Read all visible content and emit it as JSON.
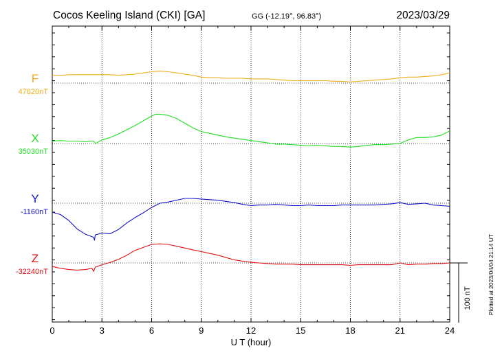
{
  "chart_data": {
    "type": "line",
    "title": "Cocos Keeling Island (CKI)  [GA]",
    "coords": "GG (-12.19°,  96.83°)",
    "date": "2023/03/29",
    "xlabel": "U T (hour)",
    "xlim": [
      0,
      24
    ],
    "xticks": [
      0,
      3,
      6,
      9,
      12,
      15,
      18,
      21,
      24
    ],
    "scale_label": "100 nT",
    "scale_nT": 100,
    "plotted_note": "Plotted at 2023/04/04 21:14 UT",
    "series": [
      {
        "name": "F",
        "baseline_label": "47620nT",
        "baseline_nT": 47620,
        "color": "#f0ac1a",
        "x": [
          0,
          0.5,
          1,
          1.5,
          2,
          2.5,
          3,
          3.5,
          4,
          4.5,
          5,
          5.5,
          6,
          6.5,
          7,
          7.5,
          8,
          8.5,
          9,
          9.5,
          10,
          10.5,
          11,
          11.5,
          12,
          12.5,
          13,
          13.5,
          14,
          14.5,
          15,
          15.5,
          16,
          16.5,
          17,
          17.5,
          18,
          18.5,
          19,
          19.5,
          20,
          20.5,
          21,
          21.5,
          22,
          22.5,
          23,
          23.5,
          24
        ],
        "values": [
          47633,
          47633,
          47634,
          47634,
          47634,
          47634,
          47634,
          47634,
          47633,
          47634,
          47635,
          47637,
          47639,
          47640,
          47639,
          47637,
          47635,
          47633,
          47630,
          47629,
          47629,
          47628,
          47628,
          47628,
          47627,
          47627,
          47627,
          47626,
          47625,
          47624,
          47624,
          47624,
          47624,
          47624,
          47623,
          47623,
          47622,
          47623,
          47624,
          47625,
          47626,
          47627,
          47629,
          47630,
          47630,
          47631,
          47632,
          47634,
          47637
        ]
      },
      {
        "name": "X",
        "baseline_label": "35030nT",
        "baseline_nT": 35030,
        "color": "#22dd22",
        "x": [
          0,
          0.5,
          1,
          1.5,
          2,
          2.5,
          2.6,
          3,
          3.5,
          4,
          4.5,
          5,
          5.5,
          6,
          6.25,
          6.5,
          7,
          7.5,
          8,
          8.5,
          9,
          9.5,
          10,
          10.5,
          11,
          11.5,
          12,
          12.5,
          13,
          13.5,
          14,
          14.5,
          15,
          15.5,
          16,
          16.5,
          17,
          17.5,
          18,
          18.5,
          19,
          19.5,
          20,
          20.5,
          21,
          21.5,
          22,
          22.5,
          23,
          23.5,
          24
        ],
        "values": [
          35034,
          35035,
          35034,
          35034,
          35033,
          35034,
          35030,
          35036,
          35040,
          35046,
          35053,
          35060,
          35068,
          35076,
          35079,
          35079,
          35077,
          35072,
          35064,
          35056,
          35050,
          35047,
          35044,
          35041,
          35039,
          35037,
          35035,
          35033,
          35031,
          35029,
          35029,
          35028,
          35027,
          35026,
          35027,
          35026,
          35025,
          35025,
          35024,
          35025,
          35027,
          35028,
          35028,
          35029,
          35030,
          35036,
          35040,
          35040,
          35041,
          35044,
          35051
        ]
      },
      {
        "name": "Y",
        "baseline_label": "-1160nT",
        "baseline_nT": -1160,
        "color": "#1111cc",
        "x": [
          0,
          0.5,
          1,
          1.5,
          2,
          2.5,
          2.55,
          2.6,
          3,
          3.5,
          4,
          4.5,
          5,
          5.5,
          6,
          6.5,
          7,
          7.5,
          8,
          8.5,
          9,
          9.5,
          10,
          10.5,
          11,
          11.5,
          12,
          12.5,
          13,
          13.5,
          14,
          14.5,
          15,
          15.5,
          16,
          16.5,
          17,
          17.5,
          18,
          18.5,
          19,
          19.5,
          20,
          20.5,
          21,
          21.5,
          22,
          22.5,
          23,
          23.5,
          24
        ],
        "values": [
          -1175,
          -1179,
          -1189,
          -1203,
          -1212,
          -1217,
          -1222,
          -1213,
          -1210,
          -1211,
          -1204,
          -1193,
          -1184,
          -1176,
          -1167,
          -1160,
          -1158,
          -1155,
          -1152,
          -1152,
          -1153,
          -1154,
          -1155,
          -1157,
          -1159,
          -1162,
          -1164,
          -1163,
          -1163,
          -1162,
          -1163,
          -1164,
          -1164,
          -1163,
          -1164,
          -1164,
          -1164,
          -1163,
          -1163,
          -1163,
          -1163,
          -1163,
          -1162,
          -1161,
          -1159,
          -1162,
          -1161,
          -1160,
          -1163,
          -1164,
          -1165
        ]
      },
      {
        "name": "Z",
        "baseline_label": "-32240nT",
        "baseline_nT": -32240,
        "color": "#dd1111",
        "x": [
          0,
          0.5,
          1,
          1.5,
          2,
          2.4,
          2.5,
          2.6,
          3,
          3.5,
          4,
          4.5,
          5,
          5.5,
          6,
          6.5,
          7,
          7.5,
          8,
          8.5,
          9,
          9.5,
          10,
          10.5,
          11,
          11.5,
          12,
          12.5,
          13,
          13.5,
          14,
          14.5,
          15,
          15.5,
          16,
          16.5,
          17,
          17.5,
          18,
          18.5,
          19,
          19.5,
          20,
          20.5,
          21,
          21.5,
          22,
          22.5,
          23,
          23.5,
          24
        ],
        "values": [
          -32246,
          -32249,
          -32251,
          -32252,
          -32251,
          -32249,
          -32254,
          -32247,
          -32243,
          -32239,
          -32234,
          -32227,
          -32219,
          -32214,
          -32209,
          -32208,
          -32209,
          -32212,
          -32215,
          -32218,
          -32221,
          -32224,
          -32227,
          -32231,
          -32235,
          -32237,
          -32239,
          -32240,
          -32241,
          -32242,
          -32242,
          -32242,
          -32243,
          -32243,
          -32243,
          -32243,
          -32243,
          -32243,
          -32244,
          -32243,
          -32243,
          -32243,
          -32243,
          -32243,
          -32240,
          -32243,
          -32242,
          -32242,
          -32241,
          -32241,
          -32240
        ]
      }
    ]
  }
}
